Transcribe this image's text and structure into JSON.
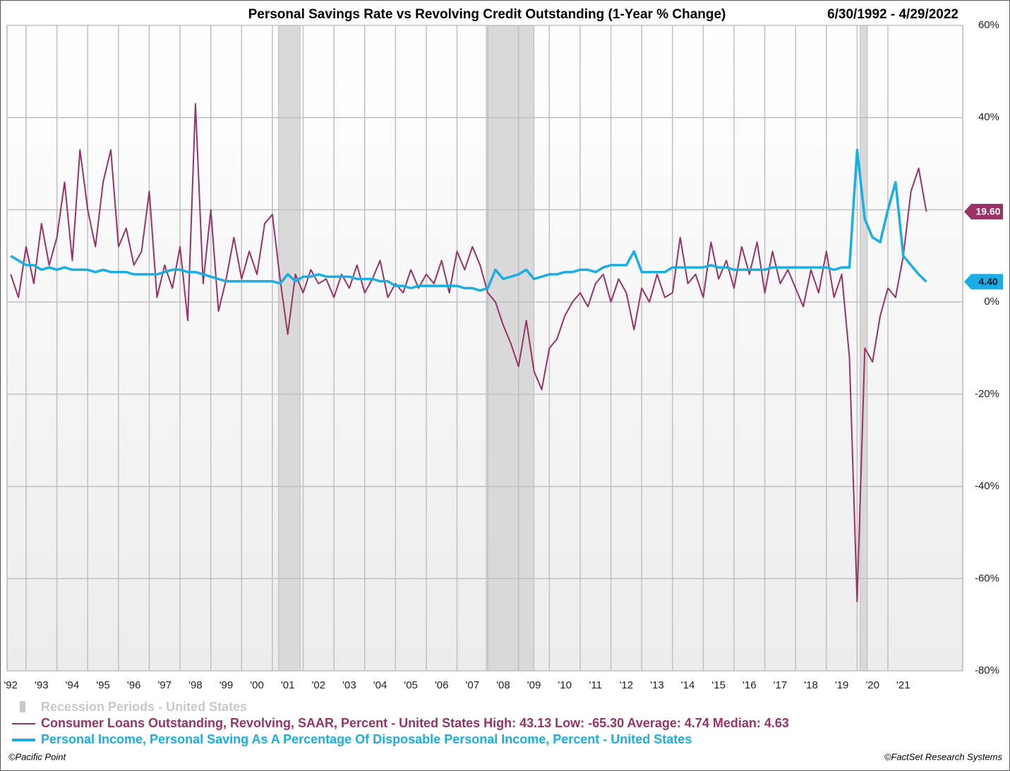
{
  "chart_data": {
    "type": "line",
    "title": "Personal Savings Rate vs Revolving Credit Outstanding (1-Year % Change)",
    "date_range": "6/30/1992 - 4/29/2022",
    "xlim": [
      1992.38,
      2023.43
    ],
    "xticks": [
      {
        "value": 1992,
        "label": "'92"
      },
      {
        "value": 1993,
        "label": "'93"
      },
      {
        "value": 1994,
        "label": "'94"
      },
      {
        "value": 1995,
        "label": "'95"
      },
      {
        "value": 1996,
        "label": "'96"
      },
      {
        "value": 1997,
        "label": "'97"
      },
      {
        "value": 1998,
        "label": "'98"
      },
      {
        "value": 1999,
        "label": "'99"
      },
      {
        "value": 2000,
        "label": "'00"
      },
      {
        "value": 2001,
        "label": "'01"
      },
      {
        "value": 2002,
        "label": "'02"
      },
      {
        "value": 2003,
        "label": "'03"
      },
      {
        "value": 2004,
        "label": "'04"
      },
      {
        "value": 2005,
        "label": "'05"
      },
      {
        "value": 2006,
        "label": "'06"
      },
      {
        "value": 2007,
        "label": "'07"
      },
      {
        "value": 2008,
        "label": "'08"
      },
      {
        "value": 2009,
        "label": "'09"
      },
      {
        "value": 2010,
        "label": "'10"
      },
      {
        "value": 2011,
        "label": "'11"
      },
      {
        "value": 2012,
        "label": "'12"
      },
      {
        "value": 2013,
        "label": "'13"
      },
      {
        "value": 2014,
        "label": "'14"
      },
      {
        "value": 2015,
        "label": "'15"
      },
      {
        "value": 2016,
        "label": "'16"
      },
      {
        "value": 2017,
        "label": "'17"
      },
      {
        "value": 2018,
        "label": "'18"
      },
      {
        "value": 2019,
        "label": "'19"
      },
      {
        "value": 2020,
        "label": "'20"
      },
      {
        "value": 2021,
        "label": "'21"
      }
    ],
    "ylim": [
      -80,
      60
    ],
    "yticks": [
      {
        "value": 60,
        "label": "60%"
      },
      {
        "value": 40,
        "label": "40%"
      },
      {
        "value": 20,
        "label": "20%"
      },
      {
        "value": 0,
        "label": "0%"
      },
      {
        "value": -20,
        "label": "-20%"
      },
      {
        "value": -40,
        "label": "-40%"
      },
      {
        "value": -60,
        "label": "-60%"
      },
      {
        "value": -80,
        "label": "-80%"
      }
    ],
    "grid": true,
    "recession_label": "Recession Periods - United States",
    "recessions": [
      {
        "start": 2001.2,
        "end": 2001.9
      },
      {
        "start": 2007.95,
        "end": 2009.5
      },
      {
        "start": 2020.1,
        "end": 2020.33
      }
    ],
    "x": [
      1992.5,
      1992.75,
      1993,
      1993.25,
      1993.5,
      1993.75,
      1994,
      1994.25,
      1994.5,
      1994.75,
      1995,
      1995.25,
      1995.5,
      1995.75,
      1996,
      1996.25,
      1996.5,
      1996.75,
      1997,
      1997.25,
      1997.5,
      1997.75,
      1998,
      1998.25,
      1998.5,
      1998.75,
      1999,
      1999.25,
      1999.5,
      1999.75,
      2000,
      2000.25,
      2000.5,
      2000.75,
      2001,
      2001.25,
      2001.5,
      2001.75,
      2002,
      2002.25,
      2002.5,
      2002.75,
      2003,
      2003.25,
      2003.5,
      2003.75,
      2004,
      2004.25,
      2004.5,
      2004.75,
      2005,
      2005.25,
      2005.5,
      2005.75,
      2006,
      2006.25,
      2006.5,
      2006.75,
      2007,
      2007.25,
      2007.5,
      2007.75,
      2008,
      2008.25,
      2008.5,
      2008.75,
      2009,
      2009.25,
      2009.5,
      2009.75,
      2010,
      2010.25,
      2010.5,
      2010.75,
      2011,
      2011.25,
      2011.5,
      2011.75,
      2012,
      2012.25,
      2012.5,
      2012.75,
      2013,
      2013.25,
      2013.5,
      2013.75,
      2014,
      2014.25,
      2014.5,
      2014.75,
      2015,
      2015.25,
      2015.5,
      2015.75,
      2016,
      2016.25,
      2016.5,
      2016.75,
      2017,
      2017.25,
      2017.5,
      2017.75,
      2018,
      2018.25,
      2018.5,
      2018.75,
      2019,
      2019.25,
      2019.5,
      2019.75,
      2020,
      2020.25,
      2020.5,
      2020.75,
      2021,
      2021.25,
      2021.5,
      2021.75,
      2022,
      2022.25
    ],
    "series": [
      {
        "name": "Consumer Loans Outstanding, Revolving, SAAR, Percent - United States",
        "stats_text": "High: 43.13 Low: -65.30 Average: 4.74 Median: 4.63",
        "color": "#993366",
        "end_label": "19.60",
        "width": 2,
        "values": [
          6,
          1,
          12,
          4,
          17,
          8,
          14,
          26,
          9,
          33,
          20,
          12,
          26,
          33,
          12,
          16,
          8,
          11,
          24,
          1,
          8,
          3,
          12,
          -4,
          43,
          4,
          20,
          -2,
          5,
          14,
          5,
          11,
          6,
          17,
          19,
          5,
          -7,
          6,
          2,
          7,
          4,
          5,
          1,
          6,
          3,
          8,
          2,
          5,
          9,
          1,
          4,
          2,
          7,
          3,
          6,
          4,
          9,
          2,
          11,
          7,
          12,
          8,
          2,
          0,
          -5,
          -9,
          -14,
          -4,
          -15,
          -19,
          -10,
          -8,
          -3,
          0,
          2,
          -1,
          4,
          6,
          0,
          5,
          2,
          -6,
          3,
          0,
          6,
          1,
          2,
          14,
          4,
          6,
          1,
          13,
          5,
          9,
          3,
          12,
          6,
          13,
          2,
          11,
          4,
          7,
          3,
          -1,
          7,
          2,
          11,
          1,
          6,
          -12,
          -65,
          -10,
          -13,
          -3,
          3,
          1,
          10,
          24,
          29,
          19.6
        ]
      },
      {
        "name": "Personal Income, Personal Saving As A Percentage Of Disposable Personal Income, Percent - United States",
        "color": "#1aaee6",
        "end_label": "4.40",
        "width": 3.5,
        "values": [
          10,
          9,
          8,
          8,
          7,
          7.5,
          7,
          7.5,
          7,
          7,
          7,
          6.5,
          7,
          6.5,
          6.5,
          6.5,
          6,
          6,
          6,
          6,
          6.5,
          7,
          7,
          6.5,
          6.5,
          6,
          5.5,
          5,
          4.5,
          4.5,
          4.5,
          4.5,
          4.5,
          4.5,
          4.5,
          4,
          6,
          4.5,
          5.5,
          5.5,
          6,
          5.5,
          5.5,
          5.5,
          5.5,
          5,
          5,
          5,
          4.5,
          4.5,
          3.5,
          3.5,
          3,
          3.5,
          3.5,
          3.5,
          3.5,
          3.5,
          3.5,
          3,
          3,
          2.5,
          3,
          7,
          5,
          5.5,
          6,
          7,
          5,
          5.5,
          6,
          6,
          6.5,
          6.5,
          7,
          7,
          6.5,
          7.5,
          8,
          8,
          8,
          11,
          6.5,
          6.5,
          6.5,
          6.5,
          7.5,
          7.5,
          7.5,
          7.5,
          7.5,
          8,
          7.5,
          7.5,
          7,
          7,
          7,
          7,
          7,
          7.5,
          7.5,
          7.5,
          7.5,
          7.5,
          7.5,
          7.5,
          7.5,
          7,
          7.5,
          7.5,
          33,
          18,
          14,
          13,
          20,
          26,
          10,
          8,
          6,
          4.4
        ]
      }
    ],
    "source_left": "©Pacific Point",
    "source_right": "©FactSet Research Systems"
  }
}
